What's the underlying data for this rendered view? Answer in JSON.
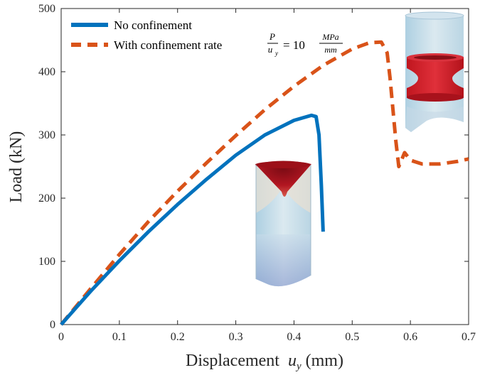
{
  "chart_data": {
    "type": "line",
    "xlabel": "Displacement",
    "xlabel_symbol": "u",
    "xlabel_subscript": "y",
    "xlabel_unit": "(mm)",
    "ylabel": "Load (kN)",
    "xlim": [
      0,
      0.7
    ],
    "ylim": [
      0,
      500
    ],
    "xticks": [
      0,
      0.1,
      0.2,
      0.3,
      0.4,
      0.5,
      0.6,
      0.7
    ],
    "yticks": [
      0,
      100,
      200,
      300,
      400,
      500
    ],
    "xtick_labels": [
      "0",
      "0.1",
      "0.2",
      "0.3",
      "0.4",
      "0.5",
      "0.6",
      "0.7"
    ],
    "ytick_labels": [
      "0",
      "100",
      "200",
      "300",
      "400",
      "500"
    ],
    "grid": false,
    "legend_position": "top-left",
    "series": [
      {
        "name": "No confinement",
        "style": "solid",
        "color": "#0072BD",
        "x": [
          0,
          0.05,
          0.1,
          0.15,
          0.2,
          0.25,
          0.3,
          0.35,
          0.4,
          0.43,
          0.438,
          0.443,
          0.447,
          0.45
        ],
        "y": [
          0,
          52,
          101,
          147,
          190,
          230,
          268,
          300,
          323,
          331,
          329,
          300,
          220,
          147
        ]
      },
      {
        "name": "With confinement rate",
        "name_math": {
          "fraction_num": "P",
          "fraction_den_symbol": "u",
          "fraction_den_sub": "y",
          "equals": "= 10",
          "unit_num": "MPa",
          "unit_den": "mm"
        },
        "style": "dashed",
        "color": "#D95319",
        "x": [
          0,
          0.05,
          0.1,
          0.15,
          0.2,
          0.25,
          0.3,
          0.35,
          0.4,
          0.45,
          0.5,
          0.53,
          0.55,
          0.56,
          0.565,
          0.57,
          0.575,
          0.58,
          0.59,
          0.6,
          0.62,
          0.65,
          0.68,
          0.7
        ],
        "y": [
          0,
          56,
          111,
          163,
          211,
          256,
          299,
          340,
          377,
          410,
          436,
          446,
          447,
          430,
          390,
          340,
          290,
          250,
          272,
          260,
          254,
          254,
          258,
          262
        ]
      }
    ]
  },
  "insets": [
    {
      "label": "unconfined-specimen-inset",
      "x": 0.39,
      "y": 205
    },
    {
      "label": "confined-specimen-inset",
      "x": 0.64,
      "y": 380
    }
  ]
}
